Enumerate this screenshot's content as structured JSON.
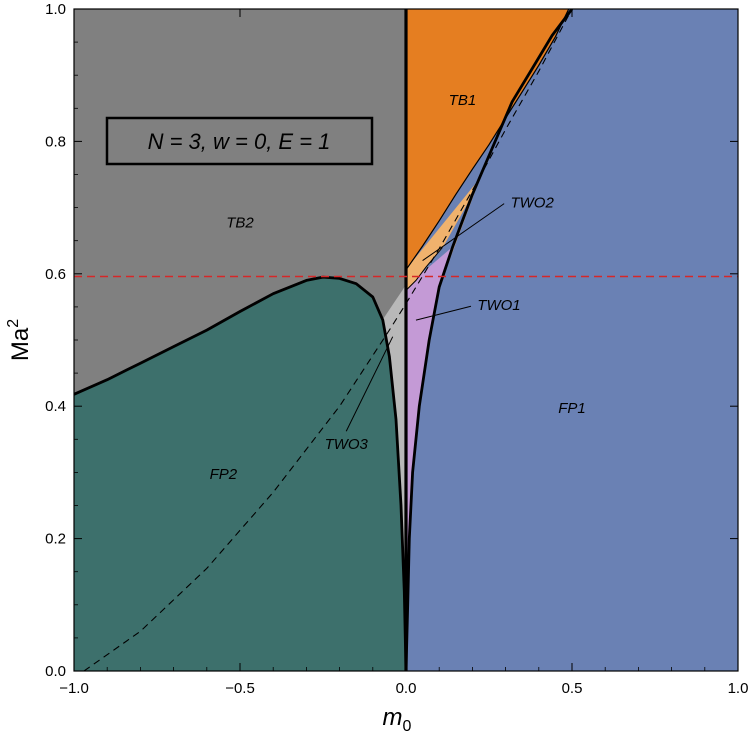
{
  "chart_data": {
    "type": "area",
    "xlabel": "m",
    "xlabel_sub": "0",
    "ylabel": "Ma",
    "ylabel_sup": "2",
    "xlim": [
      -1.0,
      1.0
    ],
    "ylim": [
      0.0,
      1.0
    ],
    "x_ticks": [
      "−1.0",
      "−0.5",
      "0.0",
      "0.5",
      "1.0"
    ],
    "y_ticks": [
      "0.0",
      "0.2",
      "0.4",
      "0.6",
      "0.8",
      "1.0"
    ],
    "inset_label": "N = 3,  w = 0,  E = 1",
    "reference_line": {
      "y": 0.596,
      "style": "dashed",
      "color": "#d62728"
    },
    "colors": {
      "TB2": "#808080",
      "FP2": "#3d706c",
      "FP1": "#6a81b4",
      "TB1": "#e57e21",
      "TWO2": "#f0b26d",
      "TWO1": "#c49ad6",
      "TWO3": "#b8b8b8"
    },
    "regions": [
      {
        "label": "TB2",
        "x": -0.5,
        "y": 0.67
      },
      {
        "label": "FP2",
        "x": -0.55,
        "y": 0.29
      },
      {
        "label": "FP1",
        "x": 0.5,
        "y": 0.39
      },
      {
        "label": "TB1",
        "x": 0.17,
        "y": 0.855
      }
    ],
    "callouts": [
      {
        "label": "TWO2",
        "text_x": 0.38,
        "text_y": 0.7,
        "point_x": 0.05,
        "point_y": 0.62
      },
      {
        "label": "TWO1",
        "text_x": 0.28,
        "text_y": 0.545,
        "point_x": 0.03,
        "point_y": 0.53
      },
      {
        "label": "TWO3",
        "text_x": -0.18,
        "text_y": 0.335,
        "point_x": -0.04,
        "point_y": 0.505
      }
    ],
    "boundaries": {
      "fp2_upper": [
        [
          -1.0,
          0.418
        ],
        [
          -0.9,
          0.44
        ],
        [
          -0.8,
          0.465
        ],
        [
          -0.7,
          0.49
        ],
        [
          -0.6,
          0.515
        ],
        [
          -0.5,
          0.543
        ],
        [
          -0.4,
          0.57
        ],
        [
          -0.3,
          0.59
        ],
        [
          -0.25,
          0.595
        ],
        [
          -0.2,
          0.593
        ],
        [
          -0.15,
          0.585
        ],
        [
          -0.1,
          0.565
        ],
        [
          -0.07,
          0.53
        ],
        [
          -0.05,
          0.475
        ],
        [
          -0.03,
          0.38
        ],
        [
          -0.015,
          0.25
        ],
        [
          -0.005,
          0.12
        ],
        [
          0.0,
          0.0
        ]
      ],
      "fp1_left": [
        [
          0.0,
          0.0
        ],
        [
          0.005,
          0.1
        ],
        [
          0.01,
          0.2
        ],
        [
          0.02,
          0.3
        ],
        [
          0.04,
          0.4
        ],
        [
          0.07,
          0.5
        ],
        [
          0.1,
          0.58
        ],
        [
          0.14,
          0.64
        ],
        [
          0.2,
          0.72
        ],
        [
          0.26,
          0.79
        ],
        [
          0.32,
          0.86
        ],
        [
          0.38,
          0.91
        ],
        [
          0.44,
          0.96
        ],
        [
          0.5,
          1.0
        ]
      ],
      "tb1_lower": [
        [
          0.0,
          0.606
        ],
        [
          0.05,
          0.642
        ],
        [
          0.1,
          0.68
        ],
        [
          0.15,
          0.72
        ],
        [
          0.2,
          0.758
        ],
        [
          0.25,
          0.795
        ],
        [
          0.3,
          0.835
        ],
        [
          0.35,
          0.875
        ],
        [
          0.4,
          0.915
        ],
        [
          0.45,
          0.958
        ],
        [
          0.49,
          1.0
        ]
      ],
      "two1_top": [
        [
          0.0,
          0.575
        ],
        [
          0.03,
          0.59
        ],
        [
          0.06,
          0.61
        ],
        [
          0.09,
          0.628
        ],
        [
          0.11,
          0.64
        ]
      ],
      "tb2_lower_diag": [
        [
          -0.07,
          0.53
        ],
        [
          -0.05,
          0.545
        ],
        [
          -0.03,
          0.56
        ],
        [
          -0.01,
          0.575
        ],
        [
          0.0,
          0.583
        ]
      ],
      "diagonal_dashed": [
        [
          -0.97,
          0.0
        ],
        [
          -0.8,
          0.06
        ],
        [
          -0.6,
          0.155
        ],
        [
          -0.4,
          0.27
        ],
        [
          -0.2,
          0.4
        ],
        [
          -0.05,
          0.515
        ],
        [
          0.0,
          0.555
        ],
        [
          0.1,
          0.638
        ],
        [
          0.2,
          0.726
        ],
        [
          0.3,
          0.818
        ],
        [
          0.4,
          0.906
        ],
        [
          0.5,
          1.0
        ]
      ]
    }
  }
}
